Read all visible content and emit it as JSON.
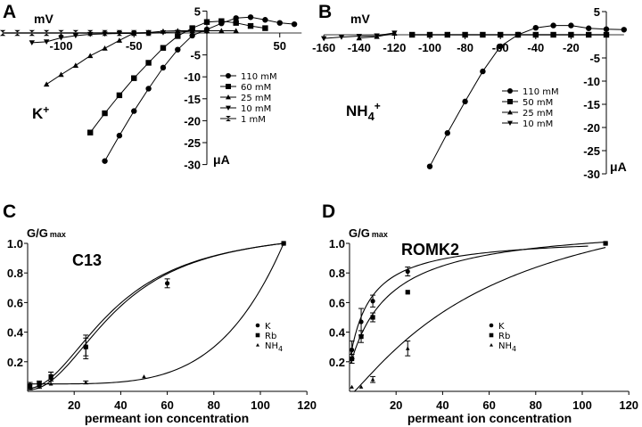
{
  "panels": {
    "A": {
      "letter": "A",
      "ion_label": "K",
      "ion_sup": "+",
      "x_unit": "mV",
      "y_unit": "μA"
    },
    "B": {
      "letter": "B",
      "ion_label": "NH",
      "ion_sub": "4",
      "ion_sup": "+",
      "x_unit": "mV",
      "y_unit": "μA"
    },
    "C": {
      "letter": "C",
      "title": "C13",
      "ylabel": "G/G",
      "ylabel_sub": "max",
      "xlabel": "permeant ion concentration"
    },
    "D": {
      "letter": "D",
      "title": "ROMK2",
      "ylabel": "G/G",
      "ylabel_sub": "max",
      "xlabel": "permeant ion concentration"
    }
  },
  "chart_data": [
    {
      "id": "A",
      "type": "line",
      "title": "K+",
      "xlabel": "mV",
      "ylabel": "μA",
      "xlim": [
        -140,
        65
      ],
      "ylim": [
        -30,
        5
      ],
      "xticks": [
        -100,
        -50,
        50
      ],
      "xtick_labels": [
        "-100",
        "-50",
        "50"
      ],
      "yticks": [
        5,
        -5,
        -10,
        -15,
        -20,
        -25,
        -30
      ],
      "ytick_labels": [
        "5",
        "-5",
        "-10",
        "-15",
        "-20",
        "-25",
        "-30"
      ],
      "legend_position": "center-right",
      "series": [
        {
          "name": "110 mM",
          "marker": "circle",
          "x": [
            -70,
            -60,
            -50,
            -40,
            -30,
            -20,
            -10,
            0,
            10,
            20,
            30,
            40,
            50,
            60
          ],
          "y": [
            -29.2,
            -23.4,
            -17.8,
            -12.7,
            -7.9,
            -3.8,
            -0.6,
            0.8,
            2.2,
            3.4,
            3.6,
            3.0,
            2.3,
            2.0
          ]
        },
        {
          "name": "60 mM",
          "marker": "square",
          "x": [
            -80,
            -70,
            -60,
            -50,
            -40,
            -30,
            -20,
            -10,
            0,
            10,
            20,
            30,
            40
          ],
          "y": [
            -22.7,
            -18.3,
            -14.2,
            -10.3,
            -6.8,
            -3.4,
            -0.7,
            1.1,
            2.5,
            2.7,
            2.3,
            1.6,
            1.1
          ]
        },
        {
          "name": "25 mM",
          "marker": "triangle-up",
          "x": [
            -110,
            -100,
            -90,
            -80,
            -70,
            -60,
            -50,
            -40,
            -30,
            -20,
            -10,
            0,
            10,
            20
          ],
          "y": [
            -11.7,
            -9.5,
            -7.4,
            -5.2,
            -3.5,
            -1.7,
            0.0,
            0.1,
            0.4,
            0.5,
            0.5,
            0.5,
            0.5,
            0.5
          ]
        },
        {
          "name": "10 mM",
          "marker": "triangle-down",
          "x": [
            -120,
            -110,
            -100,
            -90,
            -80,
            -70,
            -60,
            -50,
            -40,
            -30,
            -20,
            -10,
            0
          ],
          "y": [
            -2.2,
            -2.0,
            -1.1,
            -0.6,
            -0.3,
            -0.2,
            -0.1,
            -0.1,
            0.0,
            0.1,
            0.2,
            0.4,
            0.3
          ]
        },
        {
          "name": "1 mM",
          "marker": "bowtie",
          "x": [
            -140,
            -130,
            -120,
            -110,
            -100,
            -90,
            -80,
            -70,
            -60,
            -50,
            -40
          ],
          "y": [
            0,
            0,
            0,
            0,
            0,
            0,
            0,
            0,
            0,
            0,
            0
          ]
        }
      ]
    },
    {
      "id": "B",
      "type": "line",
      "title": "NH4+",
      "xlabel": "mV",
      "ylabel": "μA",
      "xlim": [
        -160,
        10
      ],
      "ylim": [
        -30,
        5
      ],
      "xticks": [
        -160,
        -140,
        -120,
        -100,
        -80,
        -60,
        -40,
        -20
      ],
      "xtick_labels": [
        "-160",
        "-140",
        "-120",
        "-100",
        "-80",
        "-60",
        "-40",
        "-20"
      ],
      "yticks": [
        5,
        -5,
        -10,
        -15,
        -20,
        -25,
        -30
      ],
      "ytick_labels": [
        "5",
        "-5",
        "-10",
        "-15",
        "-20",
        "-25",
        "-30"
      ],
      "legend_position": "center",
      "series": [
        {
          "name": "110 mM",
          "marker": "circle",
          "x": [
            -100,
            -90,
            -80,
            -70,
            -60,
            -50,
            -40,
            -30,
            -20,
            -10,
            0,
            10
          ],
          "y": [
            -28.4,
            -21.2,
            -14.4,
            -7.9,
            -2.5,
            0.0,
            1.5,
            2.0,
            2.0,
            1.4,
            1.2,
            1.1
          ]
        },
        {
          "name": "50 mM",
          "marker": "square",
          "x": [
            -110,
            -100,
            -90,
            -80,
            -70,
            -60,
            -50,
            -40,
            -30,
            -20,
            -10,
            0
          ],
          "y": [
            0,
            0,
            0,
            0,
            0,
            0,
            0,
            0,
            0,
            0,
            0,
            0
          ]
        },
        {
          "name": "25 mM",
          "marker": "triangle-up",
          "x": [
            -140,
            -130,
            -120
          ],
          "y": [
            -0.7,
            -0.4,
            0.3
          ]
        },
        {
          "name": "10 mM",
          "marker": "triangle-down",
          "x": [
            -160,
            -150,
            -140,
            -130,
            -120
          ],
          "y": [
            -0.8,
            -0.5,
            -0.3,
            -0.2,
            0.4
          ]
        }
      ]
    },
    {
      "id": "C",
      "type": "scatter",
      "title": "C13",
      "xlabel": "permeant ion concentration",
      "ylabel": "G/Gmax",
      "xlim": [
        0,
        120
      ],
      "ylim": [
        0,
        1.0
      ],
      "xticks": [
        20,
        40,
        60,
        80,
        100,
        120
      ],
      "yticks": [
        0.2,
        0.4,
        0.6,
        0.8,
        1.0
      ],
      "xtick_labels": [
        "20",
        "40",
        "60",
        "80",
        "100",
        "120"
      ],
      "ytick_labels": [
        "0.2",
        "0.4",
        "0.6",
        "0.8",
        "1.0"
      ],
      "legend_position": "center-right",
      "series": [
        {
          "name": "K",
          "marker": "circle",
          "x": [
            1,
            5,
            10,
            25,
            60,
            110
          ],
          "y": [
            0.04,
            0.04,
            0.09,
            0.3,
            0.73,
            1.0
          ],
          "err": [
            0.02,
            0.02,
            0.04,
            0.08,
            0.03,
            0
          ]
        },
        {
          "name": "Rb",
          "marker": "square",
          "x": [
            1,
            5,
            10,
            25,
            110
          ],
          "y": [
            0.03,
            0.05,
            0.1,
            0.3,
            1.0
          ],
          "err": [
            0.02,
            0.02,
            0.03,
            0.06,
            0
          ]
        },
        {
          "name": "NH4",
          "marker": "triangle",
          "x": [
            1,
            5,
            10,
            25,
            50,
            110
          ],
          "y": [
            0.05,
            0.05,
            0.05,
            0.06,
            0.1,
            1.0
          ],
          "err": [
            0,
            0,
            0,
            0.01,
            0,
            0
          ]
        }
      ]
    },
    {
      "id": "D",
      "type": "scatter",
      "title": "ROMK2",
      "xlabel": "permeant ion concentration",
      "ylabel": "G/Gmax",
      "xlim": [
        0,
        120
      ],
      "ylim": [
        0,
        1.0
      ],
      "xticks": [
        20,
        40,
        60,
        80,
        100,
        120
      ],
      "yticks": [
        0.2,
        0.4,
        0.6,
        0.8,
        1.0
      ],
      "xtick_labels": [
        "20",
        "40",
        "60",
        "80",
        "100",
        "120"
      ],
      "ytick_labels": [
        "0.2",
        "0.4",
        "0.6",
        "0.8",
        "1.0"
      ],
      "legend_position": "center",
      "series": [
        {
          "name": "K",
          "marker": "circle",
          "x": [
            1,
            5,
            10,
            25,
            110
          ],
          "y": [
            0.28,
            0.47,
            0.61,
            0.81,
            1.0
          ],
          "err": [
            0.06,
            0.09,
            0.04,
            0.03,
            0
          ]
        },
        {
          "name": "Rb",
          "marker": "square",
          "x": [
            1,
            5,
            10,
            25,
            110
          ],
          "y": [
            0.22,
            0.37,
            0.5,
            0.67,
            1.0
          ],
          "err": [
            0.03,
            0.04,
            0.03,
            0,
            0
          ]
        },
        {
          "name": "NH4",
          "marker": "triangle",
          "x": [
            1,
            5,
            10,
            25
          ],
          "y": [
            0.03,
            0.03,
            0.08,
            0.29
          ],
          "err": [
            0,
            0,
            0.02,
            0.05
          ]
        }
      ]
    }
  ]
}
